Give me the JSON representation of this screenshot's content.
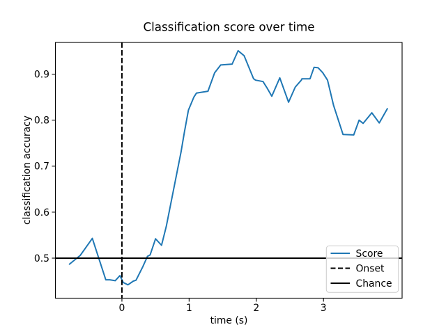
{
  "figure": {
    "background": "#ffffff",
    "text_color": "#000000",
    "spine_color": "#000000"
  },
  "chart_data": {
    "type": "line",
    "title": "Classification score over time",
    "xlabel": "time (s)",
    "ylabel": "classification accuracy",
    "xlim": [
      -0.99,
      4.17
    ],
    "ylim": [
      0.413,
      0.969
    ],
    "xticks": [
      "0",
      "1",
      "2",
      "3"
    ],
    "xtick_values": [
      0,
      1,
      2,
      3
    ],
    "yticks": [
      "0.5",
      "0.6",
      "0.7",
      "0.8",
      "0.9"
    ],
    "ytick_values": [
      0.5,
      0.6,
      0.7,
      0.8,
      0.9
    ],
    "grid": false,
    "legend": {
      "position": "lower right",
      "entries": [
        {
          "label": "Score",
          "style": "solid",
          "color": "#1f77b4"
        },
        {
          "label": "Onset",
          "style": "dashed",
          "color": "#000000"
        },
        {
          "label": "Chance",
          "style": "solid",
          "color": "#000000"
        }
      ]
    },
    "series": [
      {
        "name": "Score",
        "type": "line",
        "color": "#1f77b4",
        "x": [
          -0.78,
          -0.62,
          -0.44,
          -0.24,
          -0.18,
          -0.1,
          -0.03,
          0.02,
          0.09,
          0.17,
          0.21,
          0.31,
          0.38,
          0.42,
          0.5,
          0.59,
          0.66,
          0.88,
          0.93,
          0.99,
          1.07,
          1.11,
          1.28,
          1.38,
          1.47,
          1.64,
          1.73,
          1.82,
          1.96,
          1.99,
          2.1,
          2.16,
          2.23,
          2.35,
          2.48,
          2.58,
          2.67,
          2.68,
          2.8,
          2.86,
          2.92,
          2.99,
          3.06,
          3.15,
          3.29,
          3.45,
          3.53,
          3.59,
          3.72,
          3.83,
          3.95
        ],
        "y": [
          0.487,
          0.506,
          0.543,
          0.453,
          0.453,
          0.451,
          0.462,
          0.447,
          0.442,
          0.45,
          0.452,
          0.481,
          0.504,
          0.507,
          0.542,
          0.528,
          0.569,
          0.731,
          0.774,
          0.822,
          0.85,
          0.859,
          0.863,
          0.903,
          0.92,
          0.922,
          0.951,
          0.94,
          0.89,
          0.887,
          0.884,
          0.87,
          0.852,
          0.892,
          0.839,
          0.872,
          0.887,
          0.89,
          0.89,
          0.915,
          0.914,
          0.903,
          0.887,
          0.832,
          0.769,
          0.768,
          0.8,
          0.793,
          0.816,
          0.794,
          0.825
        ]
      }
    ],
    "annotations": [
      {
        "name": "Onset",
        "type": "vline",
        "x": 0,
        "style": "dashed",
        "color": "#000000"
      },
      {
        "name": "Chance",
        "type": "hline",
        "y": 0.5,
        "style": "solid",
        "color": "#000000"
      }
    ]
  }
}
